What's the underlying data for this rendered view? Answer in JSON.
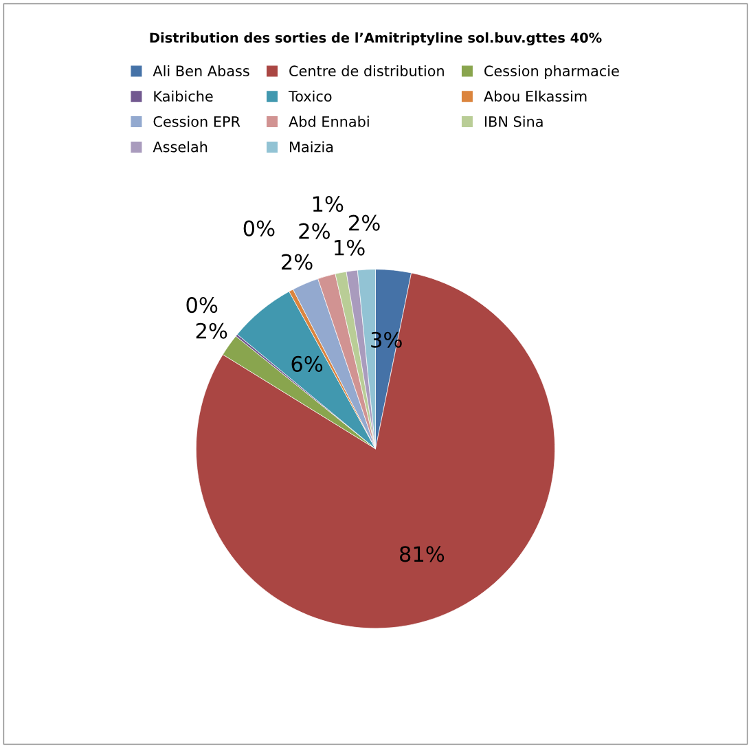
{
  "chart_data": {
    "type": "pie",
    "title": "Distribution des sorties de l’Amitriptyline sol.buv.gttes 40%",
    "categories": [
      "Ali Ben Abass",
      "Centre de distribution",
      "Cession pharmacie",
      "Kaibiche",
      "Toxico",
      "Abou Elkassim",
      "Cession EPR",
      "Abd Ennabi",
      "IBN Sina",
      "Asselah",
      "Maizia"
    ],
    "values": [
      3.2,
      80.6,
      2,
      0.2,
      6,
      0.4,
      2.4,
      1.6,
      1,
      1,
      1.6
    ],
    "value_labels": [
      "3%",
      "81%",
      "2%",
      "0%",
      "6%",
      "0%",
      "2%",
      "2%",
      "1%",
      "1%",
      "2%"
    ],
    "colors": [
      "#4572a7",
      "#aa4643",
      "#89a54e",
      "#71588f",
      "#4198af",
      "#db843d",
      "#93a9cf",
      "#d19392",
      "#b9cd96",
      "#a99bbd",
      "#92c3d4"
    ],
    "data_labels": true,
    "legend": "top"
  }
}
